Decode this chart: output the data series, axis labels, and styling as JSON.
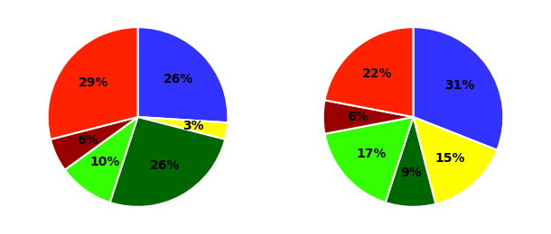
{
  "pie1": {
    "values": [
      26,
      3,
      26,
      10,
      6,
      29
    ],
    "colors": [
      "#3333ff",
      "#ffff00",
      "#006600",
      "#33ff00",
      "#990000",
      "#ff2200"
    ],
    "labels": [
      "26%",
      "3%",
      "26%",
      "10%",
      "6%",
      "29%"
    ],
    "startangle": 90
  },
  "pie2": {
    "values": [
      31,
      15,
      9,
      17,
      6,
      22
    ],
    "colors": [
      "#3333ff",
      "#ffff00",
      "#006600",
      "#33ff00",
      "#990000",
      "#ff2200"
    ],
    "labels": [
      "31%",
      "15%",
      "9%",
      "17%",
      "6%",
      "22%"
    ],
    "startangle": 90
  },
  "label_fontsize": 10,
  "label_fontweight": "bold",
  "figsize": [
    6.1,
    2.6
  ],
  "dpi": 100
}
